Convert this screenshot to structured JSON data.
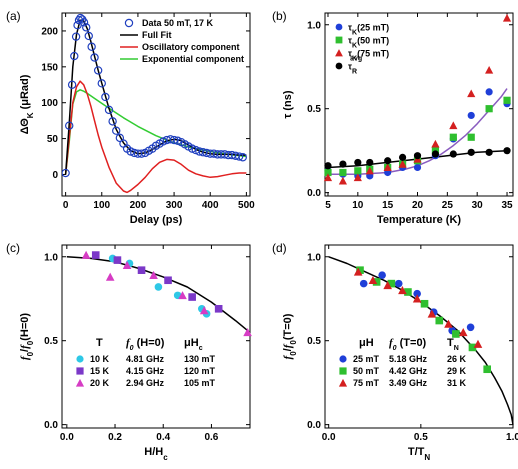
{
  "chart_data": [
    {
      "id": "a",
      "panel_label": "(a)",
      "type": "line",
      "xlabel": "Delay (ps)",
      "ylabel": "ΔΘK (μRad)",
      "xlim": [
        -10,
        510
      ],
      "ylim": [
        -30,
        225
      ],
      "xticks": [
        0,
        100,
        200,
        300,
        400,
        500
      ],
      "yticks": [
        0,
        50,
        100,
        150,
        200
      ],
      "legend_position": "top-right",
      "series": [
        {
          "name": "Data 50 mT, 17 K",
          "kind": "scatter",
          "marker": "open-circle",
          "color": "#1f3fbf"
        },
        {
          "name": "Full Fit",
          "kind": "line",
          "color": "#000000"
        },
        {
          "name": "Oscillatory component",
          "kind": "line",
          "color": "#e02020"
        },
        {
          "name": "Exponential component",
          "kind": "line",
          "color": "#33cc33"
        }
      ],
      "data": {
        "scatter": {
          "x": [
            0,
            10,
            18,
            24,
            29,
            33,
            37,
            41,
            46,
            51,
            57,
            64,
            72,
            80,
            90,
            100,
            110,
            120,
            130,
            140,
            150,
            160,
            170,
            180,
            190,
            200,
            210,
            220,
            230,
            240,
            250,
            260,
            270,
            280,
            290,
            300,
            310,
            320,
            330,
            340,
            350,
            360,
            370,
            380,
            390,
            400,
            410,
            420,
            430,
            440,
            450,
            460,
            470,
            480,
            490
          ],
          "y": [
            2,
            68,
            125,
            165,
            192,
            208,
            215,
            218,
            216,
            212,
            205,
            193,
            178,
            163,
            145,
            127,
            108,
            90,
            74,
            61,
            51,
            43,
            36,
            32,
            30,
            29,
            29,
            30,
            33,
            36,
            40,
            43,
            46,
            48,
            49,
            48,
            47,
            45,
            42,
            39,
            36,
            34,
            32,
            31,
            30,
            29,
            29,
            28,
            28,
            28,
            27,
            27,
            26,
            25,
            24
          ]
        },
        "full_fit": {
          "x": [
            0,
            10,
            20,
            30,
            40,
            50,
            60,
            70,
            80,
            90,
            100,
            120,
            140,
            160,
            180,
            200,
            220,
            240,
            260,
            280,
            300,
            320,
            340,
            360,
            380,
            400,
            420,
            440,
            460,
            480,
            500
          ],
          "y": [
            0,
            70,
            150,
            195,
            215,
            214,
            203,
            185,
            165,
            145,
            127,
            92,
            63,
            44,
            33,
            29,
            30,
            35,
            41,
            47,
            49,
            47,
            41,
            35,
            31,
            29,
            28,
            28,
            28,
            27,
            27
          ]
        },
        "oscillatory": {
          "x": [
            0,
            10,
            20,
            30,
            40,
            50,
            60,
            70,
            80,
            90,
            100,
            120,
            140,
            160,
            170,
            180,
            200,
            220,
            240,
            260,
            280,
            300,
            320,
            340,
            360,
            380,
            400,
            420,
            440,
            460,
            480,
            500
          ],
          "y": [
            0,
            50,
            100,
            122,
            130,
            125,
            112,
            95,
            75,
            55,
            38,
            10,
            -12,
            -23,
            -25,
            -22,
            -14,
            -4,
            8,
            17,
            21,
            20,
            14,
            6,
            1,
            -2,
            -4,
            -3,
            -1,
            1,
            2,
            2
          ]
        },
        "exponential": {
          "x": [
            0,
            10,
            20,
            30,
            40,
            50,
            60,
            80,
            100,
            130,
            160,
            200,
            250,
            300,
            350,
            400,
            450,
            500
          ],
          "y": [
            0,
            45,
            98,
            115,
            118,
            116,
            113,
            106,
            99,
            89,
            79,
            67,
            54,
            44,
            37,
            32,
            28,
            25
          ]
        }
      }
    },
    {
      "id": "b",
      "panel_label": "(b)",
      "type": "scatter",
      "xlabel": "Temperature (K)",
      "ylabel": "τ (ns)",
      "xlim": [
        4.5,
        36
      ],
      "ylim": [
        -0.02,
        1.07
      ],
      "xticks": [
        5,
        10,
        15,
        20,
        25,
        30,
        35
      ],
      "yticks": [
        0.0,
        0.5,
        1.0
      ],
      "ytick_labels": [
        "0.0",
        "0.5",
        "1.0"
      ],
      "legend_position": "top-left",
      "series": [
        {
          "name": "τK(25 mT)",
          "marker": "circle",
          "color": "#1f3fd8",
          "x": [
            5,
            7.5,
            10,
            12,
            15,
            17.5,
            20,
            23,
            26,
            29,
            32,
            35
          ],
          "y": [
            0.13,
            0.11,
            0.1,
            0.1,
            0.12,
            0.15,
            0.15,
            0.22,
            0.32,
            0.46,
            0.6,
            0.53
          ]
        },
        {
          "name": "τK(50 mT)",
          "marker": "square",
          "color": "#2fbf2f",
          "x": [
            5,
            7.5,
            10,
            12,
            15,
            17.5,
            20,
            23,
            26,
            29,
            32,
            35
          ],
          "y": [
            0.12,
            0.12,
            0.13,
            0.14,
            0.15,
            0.17,
            0.19,
            0.25,
            0.33,
            0.33,
            0.5,
            0.55
          ]
        },
        {
          "name": "τK(75 mT)",
          "marker": "triangle",
          "color": "#d42020",
          "x": [
            5,
            7.5,
            10,
            12,
            15,
            17.5,
            20,
            23,
            26,
            29,
            32,
            35
          ],
          "y": [
            0.09,
            0.07,
            0.09,
            0.13,
            0.15,
            0.17,
            0.2,
            0.29,
            0.4,
            0.59,
            0.73,
            1.04
          ]
        },
        {
          "name": "τR",
          "name_sup": "avg",
          "marker": "circle",
          "color": "#000000",
          "x": [
            5,
            7.5,
            10,
            12,
            15,
            17.5,
            20,
            23,
            26,
            29,
            32,
            35
          ],
          "y": [
            0.16,
            0.17,
            0.18,
            0.18,
            0.19,
            0.21,
            0.22,
            0.23,
            0.23,
            0.24,
            0.24,
            0.25
          ]
        }
      ],
      "fits": [
        {
          "color": "#000000",
          "x": [
            5,
            10,
            15,
            20,
            25,
            30,
            35
          ],
          "y": [
            0.15,
            0.16,
            0.18,
            0.2,
            0.22,
            0.24,
            0.25
          ]
        },
        {
          "color": "#8a5cc0",
          "x": [
            5,
            10,
            15,
            18,
            20,
            22,
            24,
            26,
            28,
            30,
            32,
            34,
            35
          ],
          "y": [
            0.11,
            0.11,
            0.12,
            0.14,
            0.16,
            0.19,
            0.23,
            0.28,
            0.34,
            0.41,
            0.49,
            0.57,
            0.62
          ]
        }
      ]
    },
    {
      "id": "c",
      "panel_label": "(c)",
      "type": "scatter",
      "xlabel": "H/Hc",
      "ylabel": "f0/f0(H=0)",
      "xlim": [
        -0.02,
        0.76
      ],
      "ylim": [
        -0.02,
        1.07
      ],
      "xticks": [
        0.0,
        0.2,
        0.4,
        0.6
      ],
      "xtick_labels": [
        "0.0",
        "0.2",
        "0.4",
        "0.6"
      ],
      "yticks": [
        0.0,
        0.5,
        1.0
      ],
      "ytick_labels": [
        "0.0",
        "0.5",
        "1.0"
      ],
      "legend_position": "bottom-left",
      "legend_header": {
        "c1": "T",
        "c2": "f0 (H=0)",
        "c3": "μHc"
      },
      "series": [
        {
          "name": "10 K",
          "freq": "4.81 GHz",
          "field": "130 mT",
          "marker": "circle",
          "color": "#2ec8e6",
          "x": [
            0.19,
            0.26,
            0.38,
            0.46,
            0.56,
            0.58
          ],
          "y": [
            0.99,
            0.96,
            0.82,
            0.77,
            0.69,
            0.66
          ]
        },
        {
          "name": "15 K",
          "freq": "4.15 GHz",
          "field": "120 mT",
          "marker": "square",
          "color": "#7b38c8",
          "x": [
            0.12,
            0.21,
            0.31,
            0.42,
            0.52,
            0.63
          ],
          "y": [
            1.01,
            0.98,
            0.92,
            0.86,
            0.76,
            0.69
          ]
        },
        {
          "name": "20 K",
          "freq": "2.94 GHz",
          "field": "105 mT",
          "marker": "triangle",
          "color": "#d63cc4",
          "x": [
            0.08,
            0.18,
            0.25,
            0.36,
            0.48,
            0.57,
            0.75
          ],
          "y": [
            1.01,
            0.88,
            0.95,
            0.89,
            0.77,
            0.68,
            0.55
          ]
        }
      ],
      "fits": [
        {
          "color": "#000000",
          "x": [
            0,
            0.1,
            0.2,
            0.3,
            0.4,
            0.5,
            0.6,
            0.7,
            0.75
          ],
          "y": [
            1.0,
            0.99,
            0.97,
            0.93,
            0.88,
            0.82,
            0.73,
            0.62,
            0.56
          ]
        }
      ]
    },
    {
      "id": "d",
      "panel_label": "(d)",
      "type": "scatter",
      "xlabel": "T/TN",
      "ylabel": "f0/f0(T=0)",
      "xlim": [
        -0.02,
        1.0
      ],
      "ylim": [
        -0.02,
        1.07
      ],
      "xticks": [
        0.0,
        0.5,
        1.0
      ],
      "xtick_labels": [
        "0.0",
        "0.5",
        "1.0"
      ],
      "yticks": [
        0.0,
        0.5,
        1.0
      ],
      "ytick_labels": [
        "0.0",
        "0.5",
        "1.0"
      ],
      "legend_position": "bottom-left",
      "legend_header": {
        "c1": "μH",
        "c2": "f0 (T=0)",
        "c3": "TN"
      },
      "series": [
        {
          "name": "25 mT",
          "freq": "5.18 GHz",
          "field": "26 K",
          "marker": "circle",
          "color": "#1f3fd8",
          "x": [
            0.19,
            0.29,
            0.38,
            0.48,
            0.57,
            0.67,
            0.77
          ],
          "y": [
            0.84,
            0.89,
            0.84,
            0.78,
            0.67,
            0.56,
            0.58
          ]
        },
        {
          "name": "50 mT",
          "freq": "4.42 GHz",
          "field": "29 K",
          "marker": "square",
          "color": "#2fbf2f",
          "x": [
            0.17,
            0.26,
            0.34,
            0.43,
            0.52,
            0.6,
            0.69,
            0.78,
            0.86
          ],
          "y": [
            0.92,
            0.85,
            0.84,
            0.79,
            0.72,
            0.62,
            0.54,
            0.46,
            0.33
          ]
        },
        {
          "name": "75 mT",
          "freq": "3.49 GHz",
          "field": "31 K",
          "marker": "triangle",
          "color": "#d42020",
          "x": [
            0.16,
            0.24,
            0.32,
            0.4,
            0.48,
            0.56,
            0.65,
            0.73,
            0.81
          ],
          "y": [
            0.91,
            0.86,
            0.83,
            0.8,
            0.75,
            0.66,
            0.6,
            0.55,
            0.48
          ]
        }
      ],
      "fits": [
        {
          "color": "#000000",
          "x": [
            0,
            0.1,
            0.2,
            0.3,
            0.4,
            0.5,
            0.6,
            0.7,
            0.8,
            0.85,
            0.9,
            0.94,
            0.97,
            0.99,
            1.0
          ],
          "y": [
            1.0,
            0.96,
            0.91,
            0.86,
            0.8,
            0.73,
            0.65,
            0.56,
            0.44,
            0.37,
            0.28,
            0.2,
            0.12,
            0.06,
            0.0
          ]
        }
      ]
    }
  ]
}
